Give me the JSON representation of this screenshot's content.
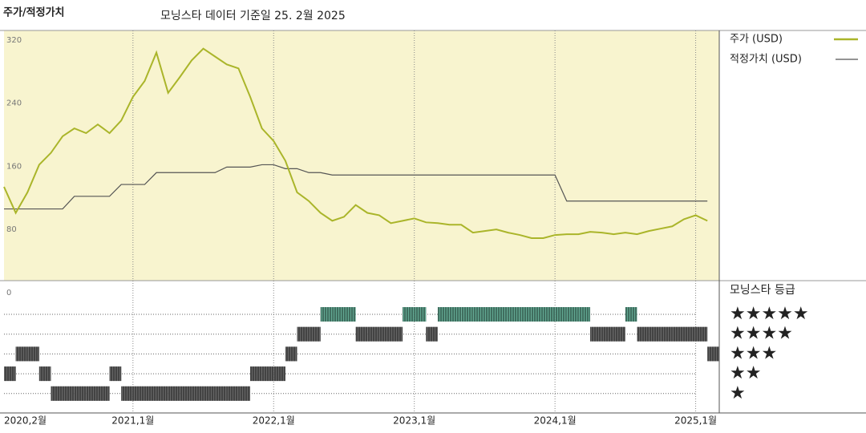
{
  "chart_data": [
    {
      "type": "line",
      "title": "주가/적정가치",
      "subtitle": "모닝스타 데이터 기준일 25. 2월 2025",
      "x": [
        "2020-02",
        "2020-03",
        "2020-04",
        "2020-05",
        "2020-06",
        "2020-07",
        "2020-08",
        "2020-09",
        "2020-10",
        "2020-11",
        "2020-12",
        "2021-01",
        "2021-02",
        "2021-03",
        "2021-04",
        "2021-05",
        "2021-06",
        "2021-07",
        "2021-08",
        "2021-09",
        "2021-10",
        "2021-11",
        "2021-12",
        "2022-01",
        "2022-02",
        "2022-03",
        "2022-04",
        "2022-05",
        "2022-06",
        "2022-07",
        "2022-08",
        "2022-09",
        "2022-10",
        "2022-11",
        "2022-12",
        "2023-01",
        "2023-02",
        "2023-03",
        "2023-04",
        "2023-05",
        "2023-06",
        "2023-07",
        "2023-08",
        "2023-09",
        "2023-10",
        "2023-11",
        "2023-12",
        "2024-01",
        "2024-02",
        "2024-03",
        "2024-04",
        "2024-05",
        "2024-06",
        "2024-07",
        "2024-08",
        "2024-09",
        "2024-10",
        "2024-11",
        "2024-12",
        "2025-01",
        "2025-02"
      ],
      "xticks": [
        {
          "value": "2020-02",
          "label": "2020,2월"
        },
        {
          "value": "2021-01",
          "label": "2021,1월"
        },
        {
          "value": "2022-01",
          "label": "2022,1월"
        },
        {
          "value": "2023-01",
          "label": "2023,1월"
        },
        {
          "value": "2024-01",
          "label": "2024,1월"
        },
        {
          "value": "2025-01",
          "label": "2025,1월"
        }
      ],
      "ylim": [
        0,
        330
      ],
      "yticks": [
        0,
        80,
        160,
        240,
        320
      ],
      "series": [
        {
          "name": "주가 (USD)",
          "color": "#aab52a",
          "values": [
            132,
            99,
            125,
            160,
            175,
            196,
            206,
            200,
            211,
            200,
            216,
            246,
            266,
            302,
            251,
            271,
            292,
            307,
            297,
            287,
            282,
            246,
            206,
            190,
            165,
            125,
            114,
            99,
            89,
            94,
            109,
            99,
            96,
            86,
            89,
            92,
            87,
            86,
            84,
            84,
            74,
            76,
            78,
            74,
            71,
            67,
            67,
            71,
            72,
            72,
            75,
            74,
            72,
            74,
            72,
            76,
            79,
            82,
            91,
            96,
            89
          ]
        },
        {
          "name": "적정가치 (USD)",
          "color": "#555555",
          "values": [
            104,
            104,
            104,
            104,
            104,
            104,
            120,
            120,
            120,
            120,
            135,
            135,
            135,
            150,
            150,
            150,
            150,
            150,
            150,
            157,
            157,
            157,
            160,
            160,
            155,
            155,
            150,
            150,
            147,
            147,
            147,
            147,
            147,
            147,
            147,
            147,
            147,
            147,
            147,
            147,
            147,
            147,
            147,
            147,
            147,
            147,
            147,
            147,
            114,
            114,
            114,
            114,
            114,
            114,
            114,
            114,
            114,
            114,
            114,
            114,
            114
          ]
        }
      ]
    },
    {
      "type": "rating",
      "title": "모닝스타 등급",
      "yticks": [
        {
          "value": 5,
          "label": "★★★★★"
        },
        {
          "value": 4,
          "label": "★★★★"
        },
        {
          "value": 3,
          "label": "★★★"
        },
        {
          "value": 2,
          "label": "★★"
        },
        {
          "value": 1,
          "label": "★"
        }
      ],
      "colors": [
        "#333333",
        "#333333",
        "#333333",
        "#333333",
        "#2e8b6e"
      ],
      "values": [
        2,
        3,
        3,
        2,
        1,
        1,
        1,
        1,
        1,
        2,
        1,
        1,
        1,
        1,
        1,
        1,
        1,
        1,
        1,
        1,
        1,
        2,
        2,
        2,
        3,
        4,
        4,
        5,
        5,
        5,
        4,
        4,
        4,
        4,
        5,
        5,
        4,
        5,
        5,
        5,
        5,
        5,
        5,
        5,
        5,
        5,
        5,
        5,
        5,
        5,
        4,
        4,
        4,
        5,
        4,
        4,
        4,
        4,
        4,
        4,
        3
      ]
    }
  ]
}
